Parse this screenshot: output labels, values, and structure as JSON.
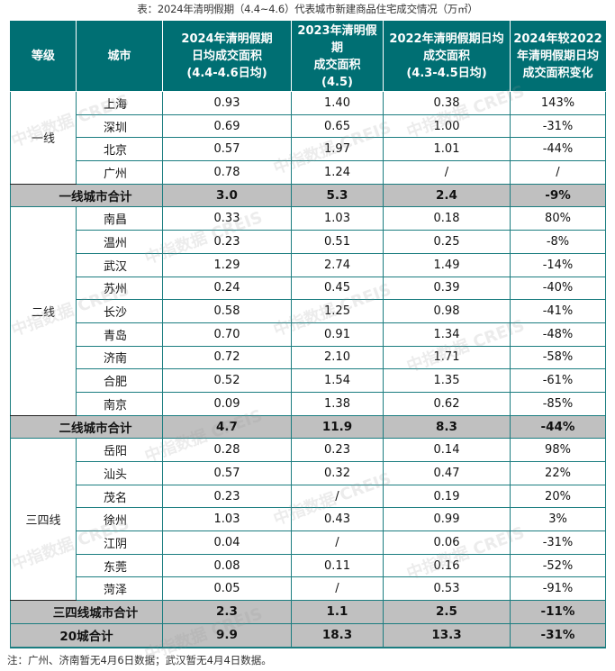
{
  "caption": "表：2024年清明假期（4.4~4.6）代表城市新建商品住宅成交情况（万㎡）",
  "header": {
    "tier": "等级",
    "city": "城市",
    "col_2024": [
      "2024年清明假期",
      "日均成交面积",
      "(4.4-4.6日均)"
    ],
    "col_2023": [
      "2023年清明假期",
      "成交面积",
      "(4.5)"
    ],
    "col_2022": [
      "2022年清明假期日均",
      "成交面积",
      "(4.3-4.5日均)"
    ],
    "col_change": [
      "2024年较2022",
      "年清明假期日均",
      "成交面积变化"
    ]
  },
  "groups": [
    {
      "tier": "一线",
      "rows": [
        {
          "city": "上海",
          "v2024": "0.93",
          "v2023": "1.40",
          "v2022": "0.38",
          "change": "143%"
        },
        {
          "city": "深圳",
          "v2024": "0.69",
          "v2023": "0.65",
          "v2022": "1.00",
          "change": "-31%"
        },
        {
          "city": "北京",
          "v2024": "0.57",
          "v2023": "1.97",
          "v2022": "1.01",
          "change": "-44%"
        },
        {
          "city": "广州",
          "v2024": "0.78",
          "v2023": "1.24",
          "v2022": "/",
          "change": "/"
        }
      ],
      "subtotal": {
        "label": "一线城市合计",
        "v2024": "3.0",
        "v2023": "5.3",
        "v2022": "2.4",
        "change": "-9%"
      }
    },
    {
      "tier": "二线",
      "rows": [
        {
          "city": "南昌",
          "v2024": "0.33",
          "v2023": "1.03",
          "v2022": "0.18",
          "change": "80%"
        },
        {
          "city": "温州",
          "v2024": "0.23",
          "v2023": "0.51",
          "v2022": "0.25",
          "change": "-8%"
        },
        {
          "city": "武汉",
          "v2024": "1.29",
          "v2023": "2.74",
          "v2022": "1.49",
          "change": "-14%"
        },
        {
          "city": "苏州",
          "v2024": "0.24",
          "v2023": "0.45",
          "v2022": "0.39",
          "change": "-40%"
        },
        {
          "city": "长沙",
          "v2024": "0.58",
          "v2023": "1.25",
          "v2022": "0.98",
          "change": "-41%"
        },
        {
          "city": "青岛",
          "v2024": "0.70",
          "v2023": "0.91",
          "v2022": "1.34",
          "change": "-48%"
        },
        {
          "city": "济南",
          "v2024": "0.72",
          "v2023": "2.10",
          "v2022": "1.71",
          "change": "-58%"
        },
        {
          "city": "合肥",
          "v2024": "0.52",
          "v2023": "1.54",
          "v2022": "1.35",
          "change": "-61%"
        },
        {
          "city": "南京",
          "v2024": "0.09",
          "v2023": "1.38",
          "v2022": "0.62",
          "change": "-85%"
        }
      ],
      "subtotal": {
        "label": "二线城市合计",
        "v2024": "4.7",
        "v2023": "11.9",
        "v2022": "8.3",
        "change": "-44%"
      }
    },
    {
      "tier": "三四线",
      "rows": [
        {
          "city": "岳阳",
          "v2024": "0.28",
          "v2023": "0.23",
          "v2022": "0.14",
          "change": "98%"
        },
        {
          "city": "汕头",
          "v2024": "0.57",
          "v2023": "0.32",
          "v2022": "0.47",
          "change": "22%"
        },
        {
          "city": "茂名",
          "v2024": "0.23",
          "v2023": "/",
          "v2022": "0.19",
          "change": "20%"
        },
        {
          "city": "徐州",
          "v2024": "1.03",
          "v2023": "0.43",
          "v2022": "0.99",
          "change": "3%"
        },
        {
          "city": "江阴",
          "v2024": "0.04",
          "v2023": "/",
          "v2022": "0.06",
          "change": "-31%"
        },
        {
          "city": "东莞",
          "v2024": "0.08",
          "v2023": "0.11",
          "v2022": "0.16",
          "change": "-52%"
        },
        {
          "city": "菏泽",
          "v2024": "0.05",
          "v2023": "/",
          "v2022": "0.53",
          "change": "-91%"
        }
      ],
      "subtotal": {
        "label": "三四线城市合计",
        "v2024": "2.3",
        "v2023": "1.1",
        "v2022": "2.5",
        "change": "-11%"
      }
    }
  ],
  "total": {
    "label": "20城合计",
    "v2024": "9.9",
    "v2023": "18.3",
    "v2022": "13.3",
    "change": "-31%"
  },
  "note": "注：广州、济南暂无4月6日数据；武汉暂无4月4日数据。",
  "watermark": [
    "中指数据",
    "CREIS"
  ],
  "colors": {
    "header_bg": "#006f73",
    "grid": "#1b7d80",
    "subtotal_bg": "#c0c0c0"
  }
}
